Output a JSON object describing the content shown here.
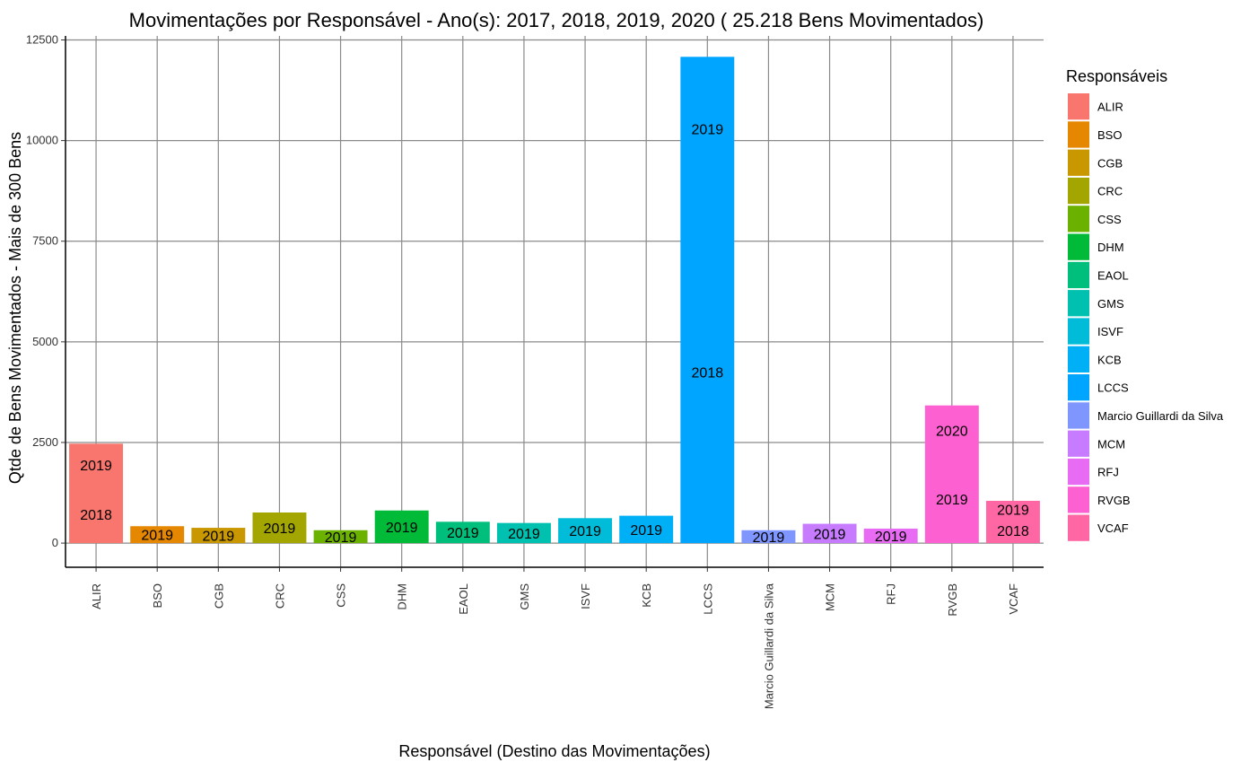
{
  "chart_data": {
    "type": "bar",
    "title": "Movimentações por Responsável  - Ano(s):  2017, 2018, 2019, 2020 ( 25.218  Bens Movimentados)",
    "xlabel": "Responsável (Destino das Movimentações)",
    "ylabel": "Qtde de Bens Movimentados - Mais de  300  Bens",
    "ylim": [
      -600,
      12600
    ],
    "yticks": [
      0,
      2500,
      5000,
      7500,
      10000,
      12500
    ],
    "ytick_labels": [
      "0",
      "2500",
      "5000",
      "7500",
      "10000",
      "12500"
    ],
    "categories": [
      "ALIR",
      "BSO",
      "CGB",
      "CRC",
      "CSS",
      "DHM",
      "EAOL",
      "GMS",
      "ISVF",
      "KCB",
      "LCCS",
      "Marcio Guillardi da Silva",
      "MCM",
      "RFJ",
      "RVGB",
      "VCAF"
    ],
    "values": [
      2470,
      420,
      380,
      760,
      320,
      810,
      530,
      500,
      620,
      680,
      12080,
      320,
      480,
      360,
      3420,
      1050
    ],
    "colors": [
      "#F8766D",
      "#E58700",
      "#C99800",
      "#A3A500",
      "#6BB100",
      "#00BA38",
      "#00BF7D",
      "#00C0AF",
      "#00BCD8",
      "#00B0F6",
      "#00A5FF",
      "#7F96FF",
      "#C77CFF",
      "#E76BF3",
      "#FD61D1",
      "#FF67A4"
    ],
    "segment_labels": [
      [
        "2018",
        "2019"
      ],
      [
        "2019"
      ],
      [
        "2019"
      ],
      [
        "2019"
      ],
      [
        "2019"
      ],
      [
        "2019"
      ],
      [
        "2019"
      ],
      [
        "2019"
      ],
      [
        "2019"
      ],
      [
        "2019"
      ],
      [
        "2018",
        "2019"
      ],
      [
        "2019"
      ],
      [
        "2019"
      ],
      [
        "2019"
      ],
      [
        "2019",
        "2020"
      ],
      [
        "2018",
        "2019"
      ]
    ],
    "segment_values": [
      [
        1420,
        1050
      ],
      [
        420
      ],
      [
        380
      ],
      [
        760
      ],
      [
        320
      ],
      [
        810
      ],
      [
        530
      ],
      [
        500
      ],
      [
        620
      ],
      [
        680
      ],
      [
        8500,
        3580
      ],
      [
        320
      ],
      [
        480
      ],
      [
        360
      ],
      [
        2180,
        1240
      ],
      [
        620,
        430
      ]
    ],
    "grid": true,
    "legend": {
      "title": "Responsáveis",
      "position": "right",
      "entries": [
        "ALIR",
        "BSO",
        "CGB",
        "CRC",
        "CSS",
        "DHM",
        "EAOL",
        "GMS",
        "ISVF",
        "KCB",
        "LCCS",
        "Marcio Guillardi da Silva",
        "MCM",
        "RFJ",
        "RVGB",
        "VCAF"
      ]
    }
  }
}
